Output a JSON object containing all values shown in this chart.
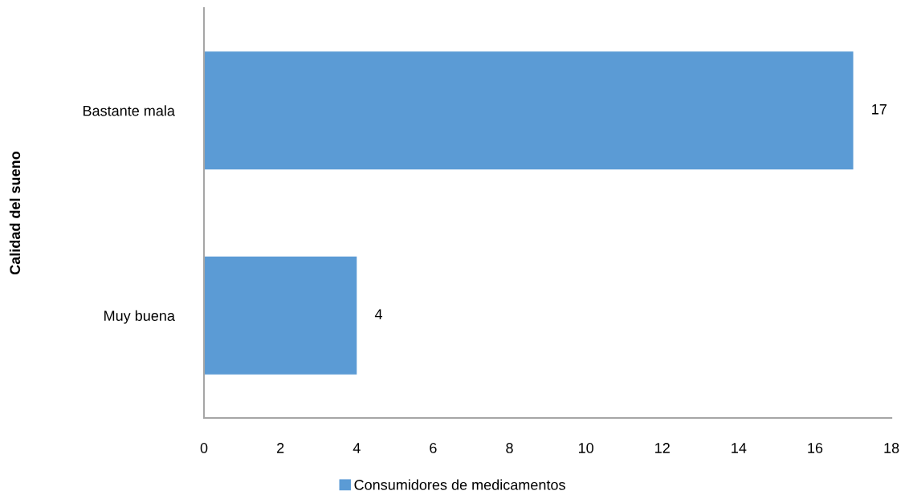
{
  "chart_data": {
    "type": "bar",
    "orientation": "horizontal",
    "ylabel": "Calidad del sueno",
    "categories": [
      "Bastante mala",
      "Muy buena"
    ],
    "series": [
      {
        "name": "Consumidores de medicamentos",
        "color": "#5b9bd5",
        "values": [
          17,
          4
        ]
      }
    ],
    "xlim": [
      0,
      18
    ],
    "xticks": [
      0,
      2,
      4,
      6,
      8,
      10,
      12,
      14,
      16,
      18
    ],
    "legend": "bottom",
    "data_labels": true
  }
}
